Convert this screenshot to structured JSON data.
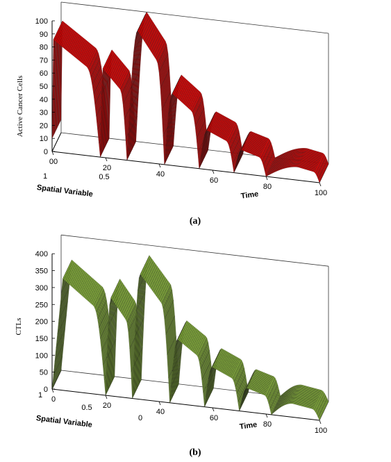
{
  "chart_data": [
    {
      "type": "surface",
      "caption": "(a)",
      "zlabel": "Active Cancer Cells",
      "xlabel": "Time",
      "ylabel": "Spatial Variable",
      "time_ticks": [
        "00",
        "20",
        "40",
        "60",
        "80",
        "100"
      ],
      "space_ticks": [
        "1",
        "0.5"
      ],
      "z_ticks": [
        "0",
        "10",
        "20",
        "30",
        "40",
        "50",
        "60",
        "70",
        "80",
        "90",
        "100"
      ],
      "xlim": [
        0,
        100
      ],
      "ylim": [
        0,
        1
      ],
      "zlim": [
        0,
        100
      ],
      "color": "#ee0000",
      "pulses": [
        {
          "start": 0,
          "peak_time": 0.3,
          "end": 18,
          "peak": 86
        },
        {
          "start": 18,
          "peak_time": 19,
          "end": 28,
          "peak": 68
        },
        {
          "start": 28,
          "peak_time": 32,
          "end": 42,
          "peak": 100
        },
        {
          "start": 42,
          "peak_time": 45,
          "end": 55,
          "peak": 55
        },
        {
          "start": 55,
          "peak_time": 58,
          "end": 68,
          "peak": 30
        },
        {
          "start": 68,
          "peak_time": 71,
          "end": 80,
          "peak": 18
        },
        {
          "start": 80,
          "peak_time": 92,
          "end": 100,
          "peak": 10
        }
      ],
      "initial_value": 10
    },
    {
      "type": "surface",
      "caption": "(b)",
      "zlabel": "CTLs",
      "xlabel": "Time",
      "ylabel": "Spatial Variable",
      "time_ticks": [
        "0",
        "20",
        "40",
        "60",
        "80",
        "100"
      ],
      "space_ticks": [
        "1",
        "0.5",
        "0"
      ],
      "z_ticks": [
        "0",
        "50",
        "100",
        "150",
        "200",
        "250",
        "300",
        "350",
        "400"
      ],
      "xlim": [
        0,
        100
      ],
      "ylim": [
        0,
        1
      ],
      "zlim": [
        0,
        400
      ],
      "color": "#8dbb3c",
      "pulses": [
        {
          "start": 0,
          "peak_time": 4,
          "end": 20,
          "peak": 330
        },
        {
          "start": 20,
          "peak_time": 22,
          "end": 30,
          "peak": 290
        },
        {
          "start": 30,
          "peak_time": 33,
          "end": 44,
          "peak": 370
        },
        {
          "start": 44,
          "peak_time": 47,
          "end": 57,
          "peak": 190
        },
        {
          "start": 57,
          "peak_time": 60,
          "end": 70,
          "peak": 120
        },
        {
          "start": 70,
          "peak_time": 73,
          "end": 82,
          "peak": 70
        },
        {
          "start": 82,
          "peak_time": 90,
          "end": 100,
          "peak": 40
        }
      ],
      "initial_value": 0
    }
  ]
}
